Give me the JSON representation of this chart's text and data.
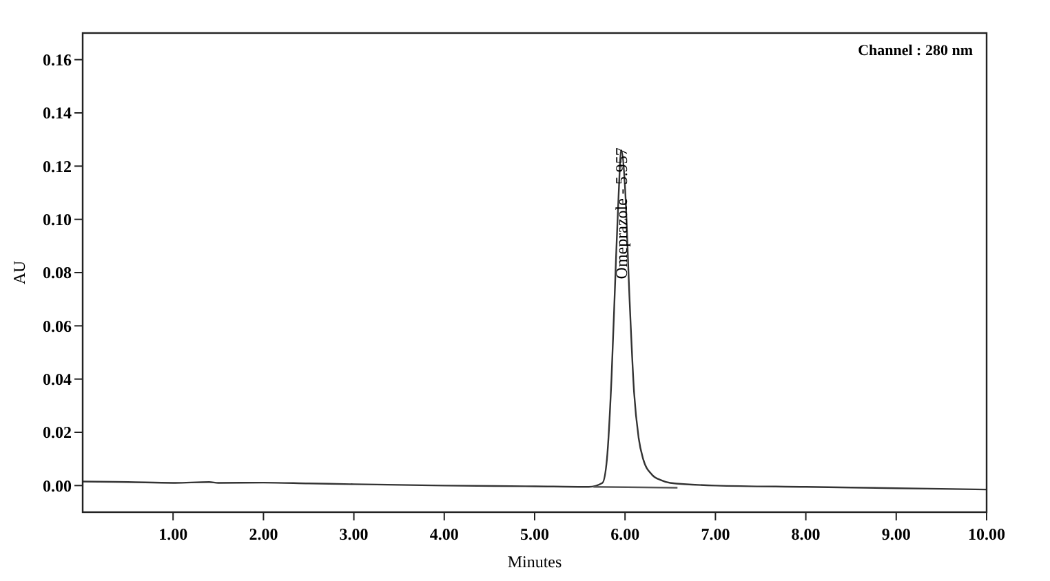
{
  "chart_data": {
    "type": "line",
    "xlabel": "Minutes",
    "ylabel": "AU",
    "series": [
      {
        "color": "#333333",
        "x": [
          0,
          0.5,
          1,
          1.4,
          1.5,
          2,
          2.5,
          3,
          4,
          5,
          5.6,
          5.75,
          5.8,
          5.85,
          5.9,
          5.93,
          5.957,
          6.0,
          6.05,
          6.1,
          6.15,
          6.2,
          6.3,
          6.4,
          6.5,
          7,
          8,
          9,
          10
        ],
        "values": [
          0.0015,
          0.0013,
          0.001,
          0.0013,
          0.001,
          0.0011,
          0.0008,
          0.0005,
          0.0,
          -0.0003,
          -0.0005,
          0.001,
          0.01,
          0.04,
          0.085,
          0.11,
          0.126,
          0.112,
          0.07,
          0.035,
          0.018,
          0.01,
          0.004,
          0.002,
          0.001,
          0.0,
          -0.0005,
          -0.001,
          -0.0015
        ]
      },
      {
        "color": "#555555",
        "x": [
          5.65,
          6.58
        ],
        "values": [
          -0.0005,
          -0.0008
        ]
      }
    ],
    "xlim": [
      0,
      10
    ],
    "ylim": [
      -0.01,
      0.17
    ],
    "xticks": [
      {
        "value": 1,
        "label": "1.00"
      },
      {
        "value": 2,
        "label": "2.00"
      },
      {
        "value": 3,
        "label": "3.00"
      },
      {
        "value": 4,
        "label": "4.00"
      },
      {
        "value": 5,
        "label": "5.00"
      },
      {
        "value": 6,
        "label": "6.00"
      },
      {
        "value": 7,
        "label": "7.00"
      },
      {
        "value": 8,
        "label": "8.00"
      },
      {
        "value": 9,
        "label": "9.00"
      },
      {
        "value": 10,
        "label": "10.00"
      }
    ],
    "yticks": [
      {
        "value": 0,
        "label": "0.00"
      },
      {
        "value": 0.02,
        "label": "0.02"
      },
      {
        "value": 0.04,
        "label": "0.04"
      },
      {
        "value": 0.06,
        "label": "0.06"
      },
      {
        "value": 0.08,
        "label": "0.08"
      },
      {
        "value": 0.1,
        "label": "0.10"
      },
      {
        "value": 0.12,
        "label": "0.12"
      },
      {
        "value": 0.14,
        "label": "0.14"
      },
      {
        "value": 0.16,
        "label": "0.16"
      }
    ],
    "annotations": [
      {
        "text": "Omeprazole - 5.957",
        "x": 5.957,
        "y": 0.126
      },
      "Channel : 280 nm"
    ],
    "grid": false
  }
}
